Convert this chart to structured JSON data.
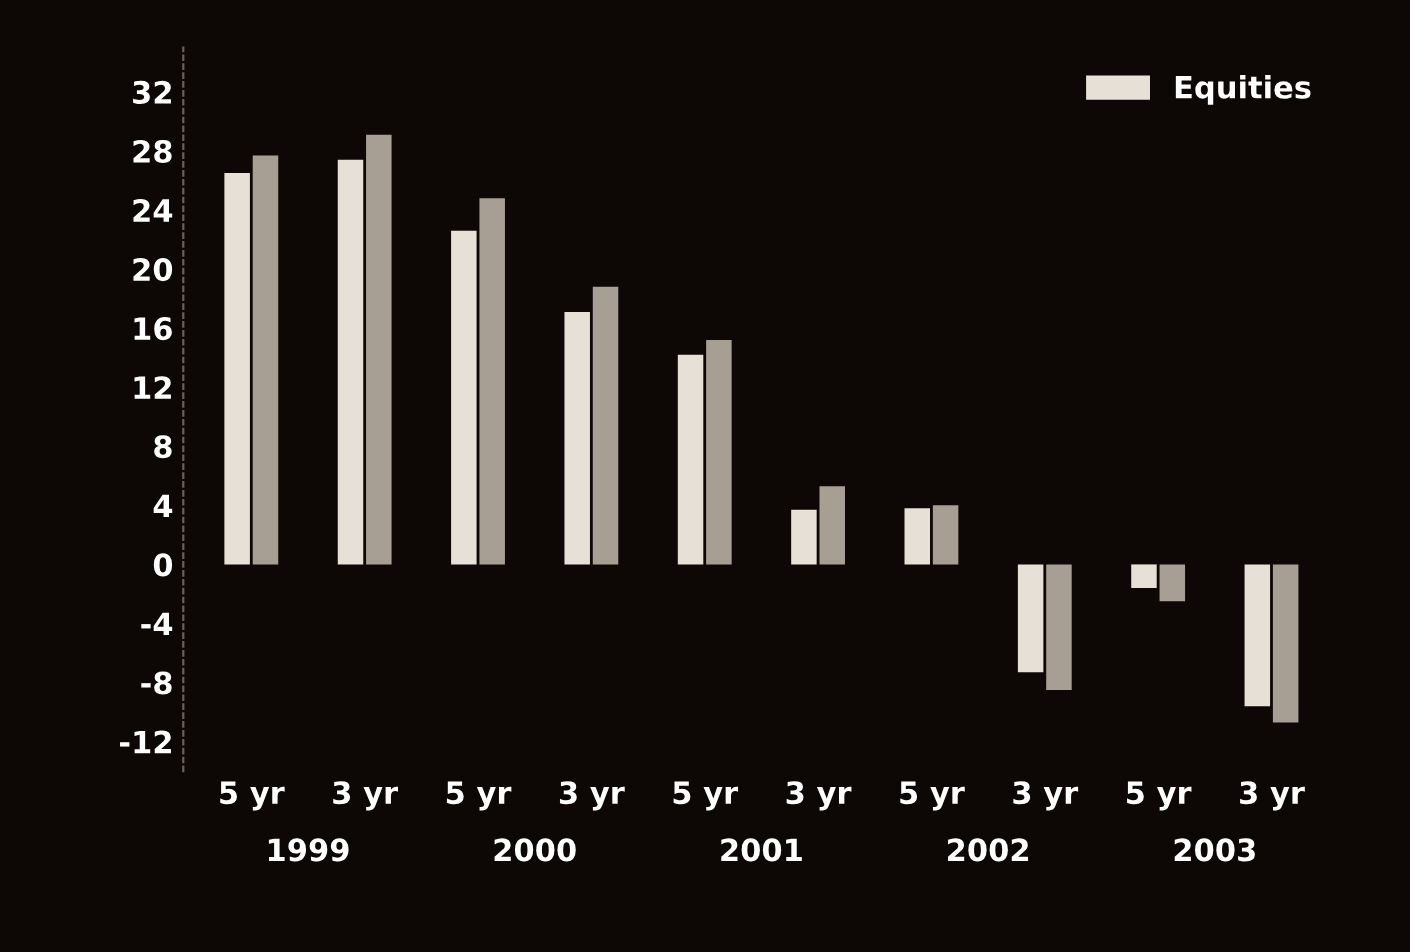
{
  "chart_data": {
    "type": "bar",
    "categories": [
      "5 yr",
      "3 yr",
      "5 yr",
      "3 yr",
      "5 yr",
      "3 yr",
      "5 yr",
      "3 yr",
      "5 yr",
      "3 yr"
    ],
    "series": [
      {
        "name": "Equities",
        "color": "#e6e0d6",
        "values": [
          26.5,
          27.4,
          22.6,
          17.1,
          14.2,
          3.7,
          3.8,
          -7.3,
          -1.6,
          -9.6
        ]
      },
      {
        "color": "#a89f94",
        "values": [
          27.7,
          29.1,
          24.8,
          18.8,
          15.2,
          5.3,
          4.0,
          -8.5,
          -2.5,
          -10.7
        ]
      }
    ],
    "annotations": [
      "1999",
      "2000",
      "2001",
      "2002",
      "2003"
    ],
    "ylim": [
      -14,
      35
    ],
    "yticks": [
      -12,
      -8,
      -4,
      0,
      4,
      8,
      12,
      16,
      20,
      24,
      28,
      32
    ],
    "grid": false,
    "legend": "top right"
  }
}
